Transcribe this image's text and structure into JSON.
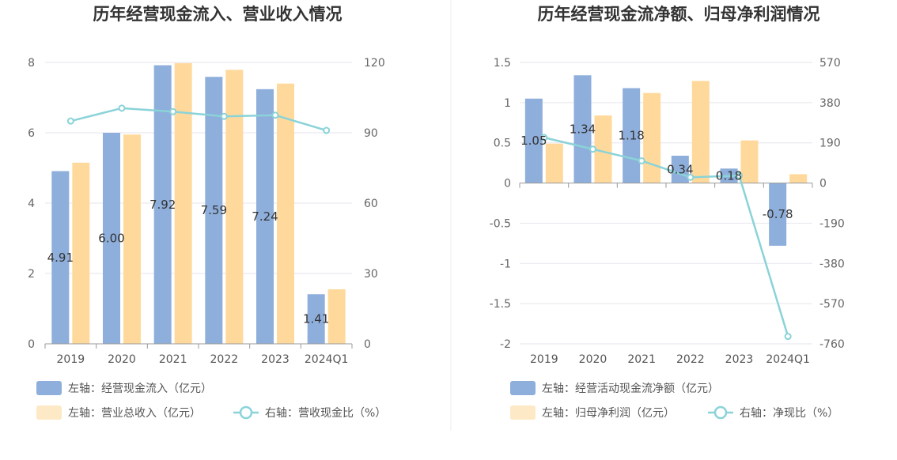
{
  "chart_data": [
    {
      "type": "bar",
      "title": "历年经营现金流入、营业收入情况",
      "categories": [
        "2019",
        "2020",
        "2021",
        "2022",
        "2023",
        "2024Q1"
      ],
      "left_axis": {
        "min": 0,
        "max": 8,
        "ticks": [
          "0",
          "2",
          "4",
          "6",
          "8"
        ]
      },
      "right_axis": {
        "min": 0,
        "max": 120,
        "ticks": [
          "0",
          "30",
          "60",
          "90",
          "120"
        ]
      },
      "series": [
        {
          "name": "左轴：经营现金流入（亿元）",
          "kind": "bar",
          "axis": "left",
          "color": "#8eaedb",
          "values": [
            4.91,
            6.0,
            7.92,
            7.59,
            7.24,
            1.41
          ],
          "labels": [
            "4.91",
            "6.00",
            "7.92",
            "7.59",
            "7.24",
            "1.41"
          ]
        },
        {
          "name": "左轴：营业总收入（亿元）",
          "kind": "bar",
          "axis": "left",
          "color": "#ffd99b",
          "values": [
            5.15,
            5.95,
            7.98,
            7.79,
            7.4,
            1.55
          ]
        },
        {
          "name": "右轴：营收现金比（%）",
          "kind": "line",
          "axis": "right",
          "color": "#8ad3d8",
          "values": [
            95,
            100.5,
            99,
            97,
            97.5,
            91
          ]
        }
      ],
      "grid": true
    },
    {
      "type": "bar",
      "title": "历年经营现金流净额、归母净利润情况",
      "categories": [
        "2019",
        "2020",
        "2021",
        "2022",
        "2023",
        "2024Q1"
      ],
      "left_axis": {
        "min": -2,
        "max": 1.5,
        "ticks": [
          "-2",
          "-1.5",
          "-1",
          "-0.5",
          "0",
          "0.5",
          "1",
          "1.5"
        ]
      },
      "right_axis": {
        "min": -760,
        "max": 570,
        "ticks": [
          "-760",
          "-570",
          "-380",
          "-190",
          "0",
          "190",
          "380",
          "570"
        ]
      },
      "series": [
        {
          "name": "左轴：经营活动现金流净额（亿元）",
          "kind": "bar",
          "axis": "left",
          "color": "#8eaedb",
          "values": [
            1.05,
            1.34,
            1.18,
            0.34,
            0.18,
            -0.78
          ],
          "labels": [
            "1.05",
            "1.34",
            "1.18",
            "0.34",
            "0.18",
            "-0.78"
          ]
        },
        {
          "name": "左轴：归母净利润（亿元）",
          "kind": "bar",
          "axis": "left",
          "color": "#ffd99b",
          "values": [
            0.49,
            0.84,
            1.12,
            1.27,
            0.53,
            0.11
          ]
        },
        {
          "name": "右轴：净现比（%）",
          "kind": "line",
          "axis": "right",
          "color": "#8ad3d8",
          "values": [
            215,
            160,
            105,
            27,
            35,
            -725
          ]
        }
      ],
      "grid": true
    }
  ]
}
